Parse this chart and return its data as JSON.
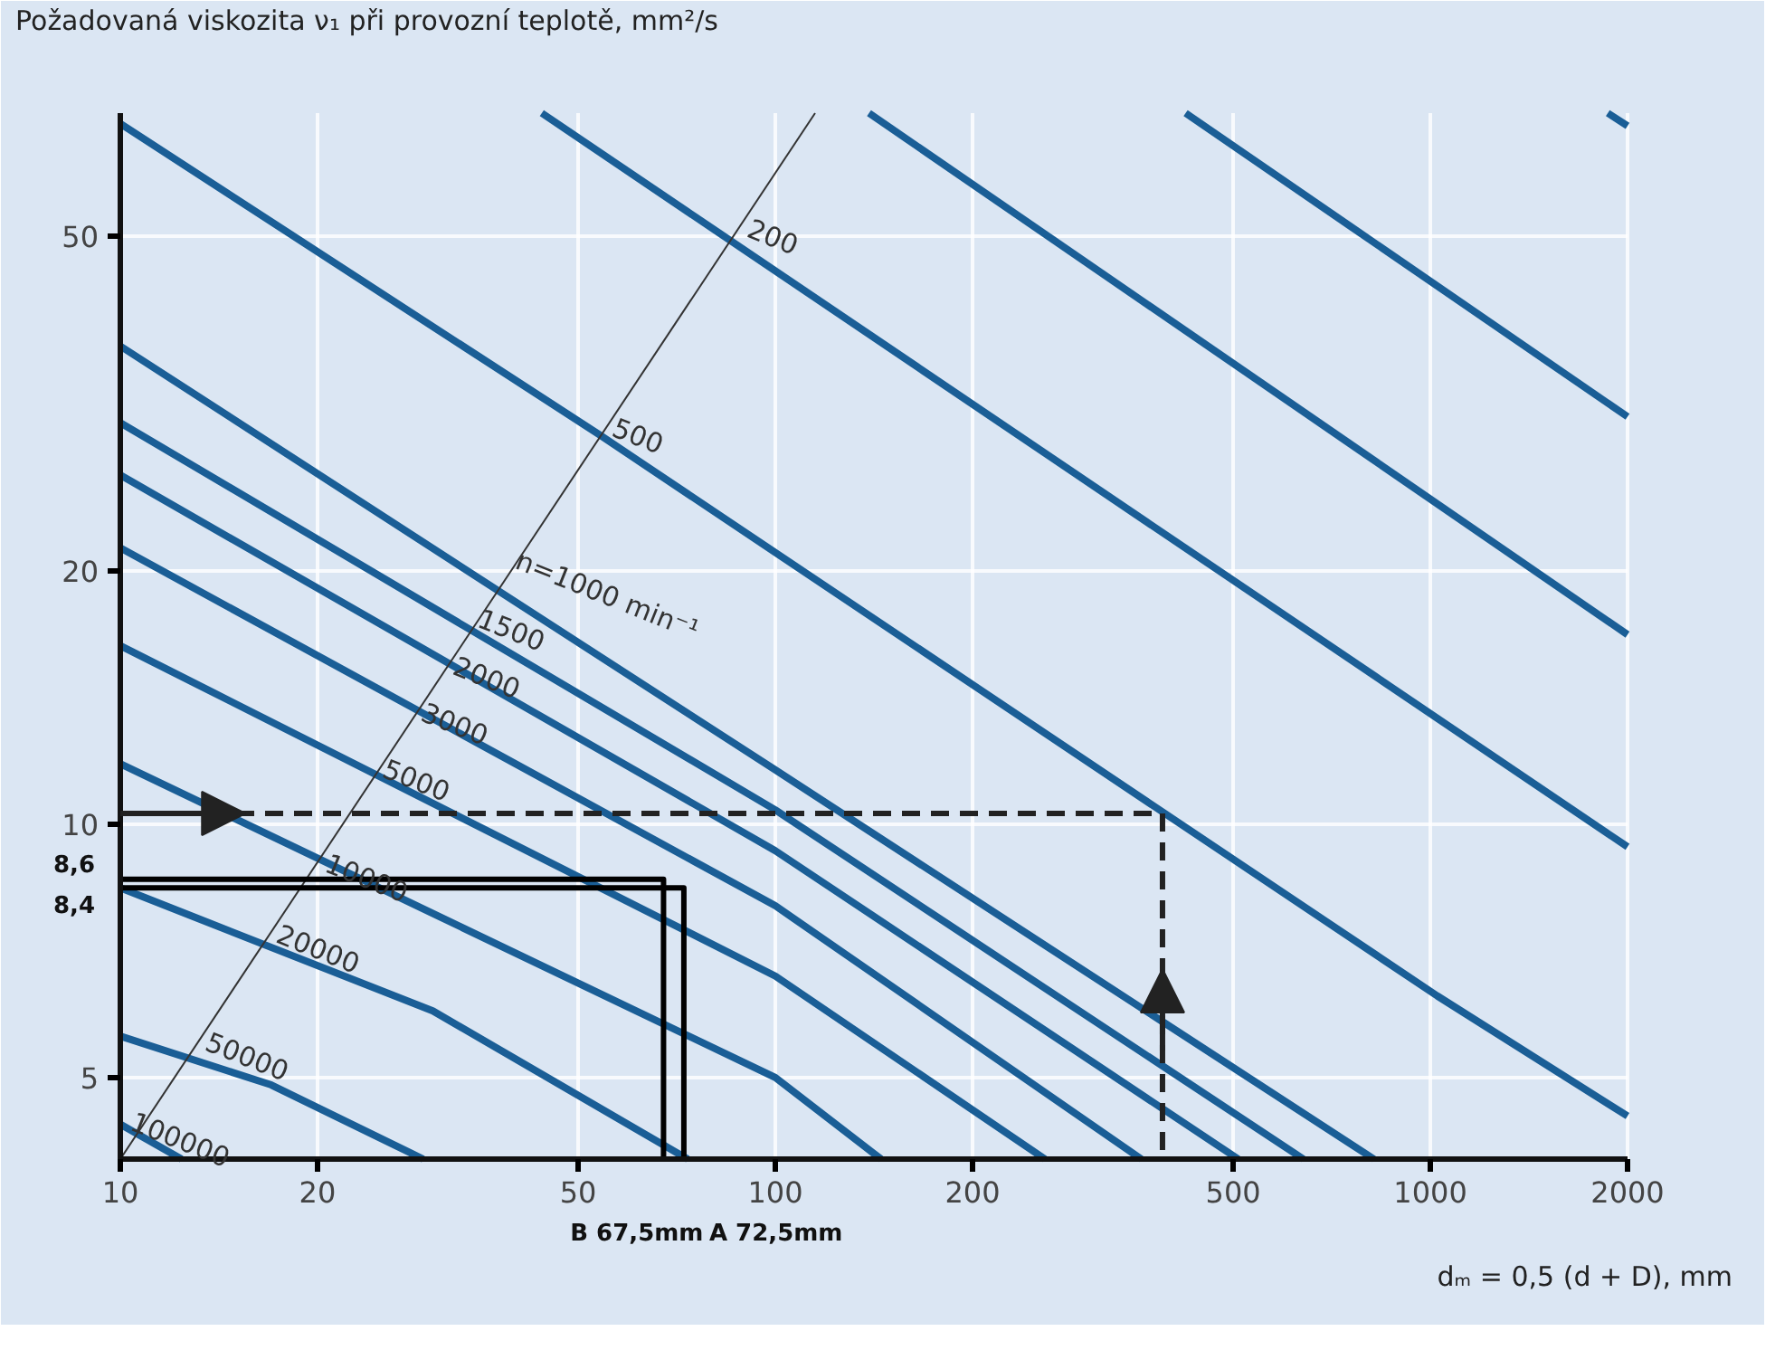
{
  "chart_data": {
    "type": "line",
    "ylabel": "Požadovaná viskozita ν₁ při provozní teplotě, mm²/s",
    "xlabel": "dₘ = 0,5 (d + D), mm",
    "log": "xy",
    "xlim": [
      10,
      2000
    ],
    "ylim": [
      4,
      70
    ],
    "xticks": [
      10,
      20,
      50,
      100,
      200,
      500,
      1000,
      2000
    ],
    "yticks": [
      5,
      10,
      20,
      50
    ],
    "grid": true,
    "series": [
      {
        "color": "#1a5e96",
        "x": [
          1866,
          2000
        ],
        "values": [
          70,
          67.6
        ]
      },
      {
        "color": "#1a5e96",
        "x": [
          423,
          2000
        ],
        "values": [
          70,
          30.5
        ]
      },
      {
        "color": "#1a5e96",
        "x": [
          139,
          2000
        ],
        "values": [
          70,
          16.8
        ]
      },
      {
        "color": "#1a5e96",
        "x": [
          44,
          2000
        ],
        "values": [
          70,
          9.4
        ]
      },
      {
        "color": "#1a5e96",
        "x": [
          10,
          54,
          1025,
          2000
        ],
        "values": [
          68,
          29,
          6.25,
          4.5
        ]
      },
      {
        "color": "#1a5e96",
        "x": [
          10,
          100,
          820
        ],
        "values": [
          37,
          11.6,
          4
        ]
      },
      {
        "color": "#1a5e96",
        "x": [
          10,
          100,
          640
        ],
        "values": [
          30,
          10.4,
          4
        ]
      },
      {
        "color": "#1a5e96",
        "x": [
          10,
          100,
          509
        ],
        "values": [
          26,
          9.3,
          4
        ]
      },
      {
        "color": "#1a5e96",
        "x": [
          10,
          100,
          362
        ],
        "values": [
          21.3,
          8.0,
          4
        ]
      },
      {
        "color": "#1a5e96",
        "x": [
          10,
          100,
          258
        ],
        "values": [
          16.3,
          6.6,
          4
        ]
      },
      {
        "color": "#1a5e96",
        "x": [
          10,
          100,
          145
        ],
        "values": [
          11.8,
          5.0,
          4
        ]
      },
      {
        "color": "#1a5e96",
        "x": [
          10,
          30,
          73.5
        ],
        "values": [
          8.4,
          6.0,
          4
        ]
      },
      {
        "color": "#1a5e96",
        "x": [
          10,
          17,
          29
        ],
        "values": [
          5.6,
          4.9,
          4
        ]
      },
      {
        "color": "#1a5e96",
        "x": [
          10,
          12.4
        ],
        "values": [
          4.4,
          4
        ]
      },
      {
        "color": "#333333",
        "x": [
          10,
          115
        ],
        "values": [
          4,
          70
        ]
      },
      {
        "color": "#000000",
        "x": [
          10,
          67.5,
          67.5
        ],
        "values": [
          8.6,
          8.6,
          4
        ]
      },
      {
        "color": "#000000",
        "x": [
          10,
          72.5,
          72.5
        ],
        "values": [
          8.4,
          8.4,
          4
        ]
      },
      {
        "color": "#222222",
        "line_style": "dashed",
        "x": [
          10,
          390,
          390
        ],
        "values": [
          10.3,
          10.3,
          4
        ]
      }
    ],
    "annotations": [
      {
        "text": "200",
        "x": 90,
        "y": 50
      },
      {
        "text": "500",
        "x": 56,
        "y": 29
      },
      {
        "text": "n=1000 min⁻¹",
        "x": 39.5,
        "y": 19.8
      },
      {
        "text": "1500",
        "x": 34.9,
        "y": 17.2
      },
      {
        "text": "2000",
        "x": 32,
        "y": 15.1
      },
      {
        "text": "3000",
        "x": 28.6,
        "y": 13.3
      },
      {
        "text": "5000",
        "x": 25,
        "y": 11.4
      },
      {
        "text": "10000",
        "x": 20.4,
        "y": 8.8
      },
      {
        "text": "20000",
        "x": 17.2,
        "y": 7.25
      },
      {
        "text": "50000",
        "x": 13.4,
        "y": 5.4
      },
      {
        "text": "100000",
        "x": 10.3,
        "y": 4.34
      },
      {
        "text": "8,6",
        "x": 10,
        "y": 8.6
      },
      {
        "text": "8,4",
        "x": 10,
        "y": 8.4
      },
      {
        "text": "B 67,5mm",
        "x": 67.5,
        "y": 4
      },
      {
        "text": "A 72,5mm",
        "x": 72.5,
        "y": 4
      }
    ]
  }
}
